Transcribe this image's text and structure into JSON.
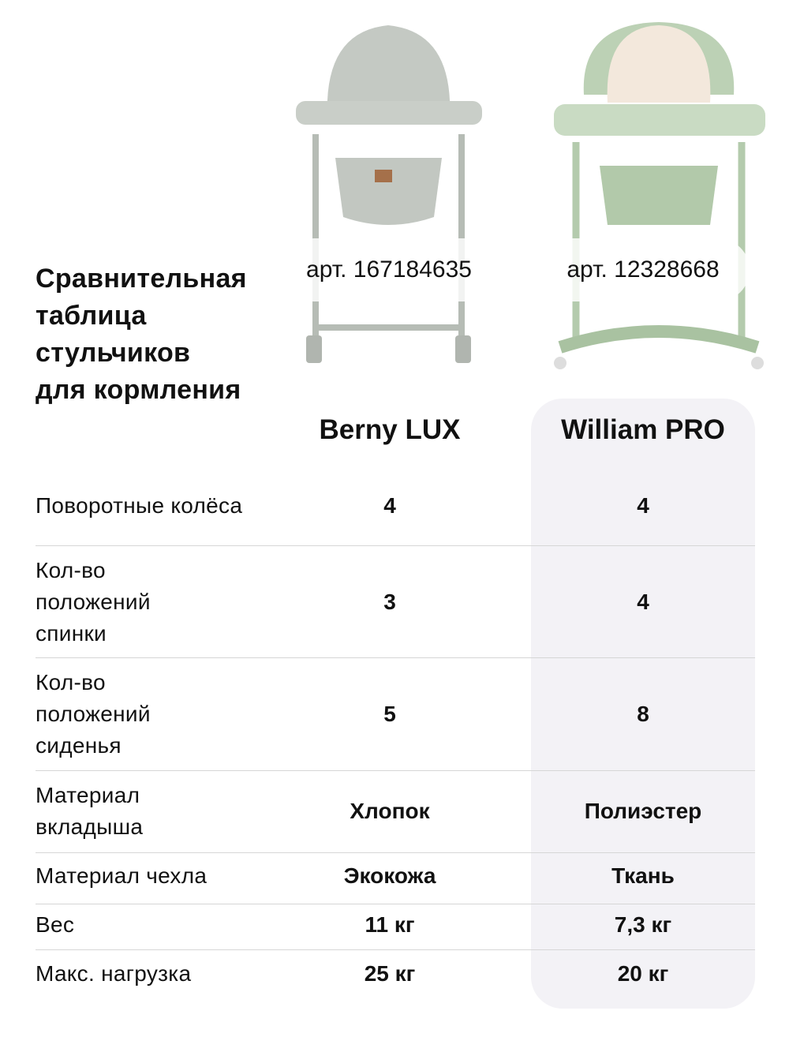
{
  "title_lines": [
    "Сравнительная",
    "таблица",
    "стульчиков",
    "для кормления"
  ],
  "products": [
    {
      "name": "Berny LUX",
      "article": "арт. 167184635",
      "color": "#b9bfb8"
    },
    {
      "name": "William PRO",
      "article": "арт. 12328668",
      "color": "#b7cdb0"
    }
  ],
  "highlight_color": "#f3f2f6",
  "rows": [
    {
      "label": "Поворотные колёса",
      "values": [
        "4",
        "4"
      ]
    },
    {
      "label": "Кол-во положений спинки",
      "values": [
        "3",
        "4"
      ]
    },
    {
      "label": "Кол-во положений сиденья",
      "values": [
        "5",
        "8"
      ]
    },
    {
      "label": "Материал вкладыша",
      "values": [
        "Хлопок",
        "Полиэстер"
      ]
    },
    {
      "label": "Материал чехла",
      "values": [
        "Экокожа",
        "Ткань"
      ]
    },
    {
      "label": "Вес",
      "values": [
        "11 кг",
        "7,3 кг"
      ]
    },
    {
      "label": "Макс. нагрузка",
      "values": [
        "25 кг",
        "20 кг"
      ]
    }
  ]
}
